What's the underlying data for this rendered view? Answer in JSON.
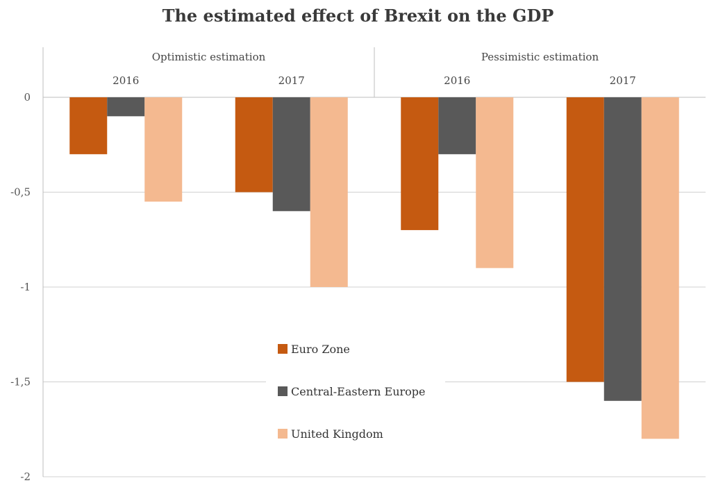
{
  "chart_data": {
    "type": "bar",
    "title": "The estimated effect of Brexit on the GDP",
    "groups": [
      "Optimistic estimation",
      "Pessimistic estimation"
    ],
    "categories": [
      "2016",
      "2017",
      "2016",
      "2017"
    ],
    "category_groups": [
      0,
      0,
      1,
      1
    ],
    "series": [
      {
        "name": "Euro Zone",
        "color": "#c55a11",
        "values": [
          -0.3,
          -0.5,
          -0.7,
          -1.5
        ]
      },
      {
        "name": "Central-Eastern Europe",
        "color": "#595959",
        "values": [
          -0.1,
          -0.6,
          -0.3,
          -1.6
        ]
      },
      {
        "name": "United Kingdom",
        "color": "#f4b990",
        "values": [
          -0.55,
          -1.0,
          -0.9,
          -1.8
        ]
      }
    ],
    "ylim": [
      -2,
      0
    ],
    "yticks": [
      0,
      -0.5,
      -1,
      -1.5,
      -2
    ],
    "ytick_labels": [
      "0",
      "-0,5",
      "-1",
      "-1,5",
      "-2"
    ],
    "xlabel": "",
    "ylabel": "",
    "grid": true,
    "legend_position": "inside-center-bottom"
  }
}
